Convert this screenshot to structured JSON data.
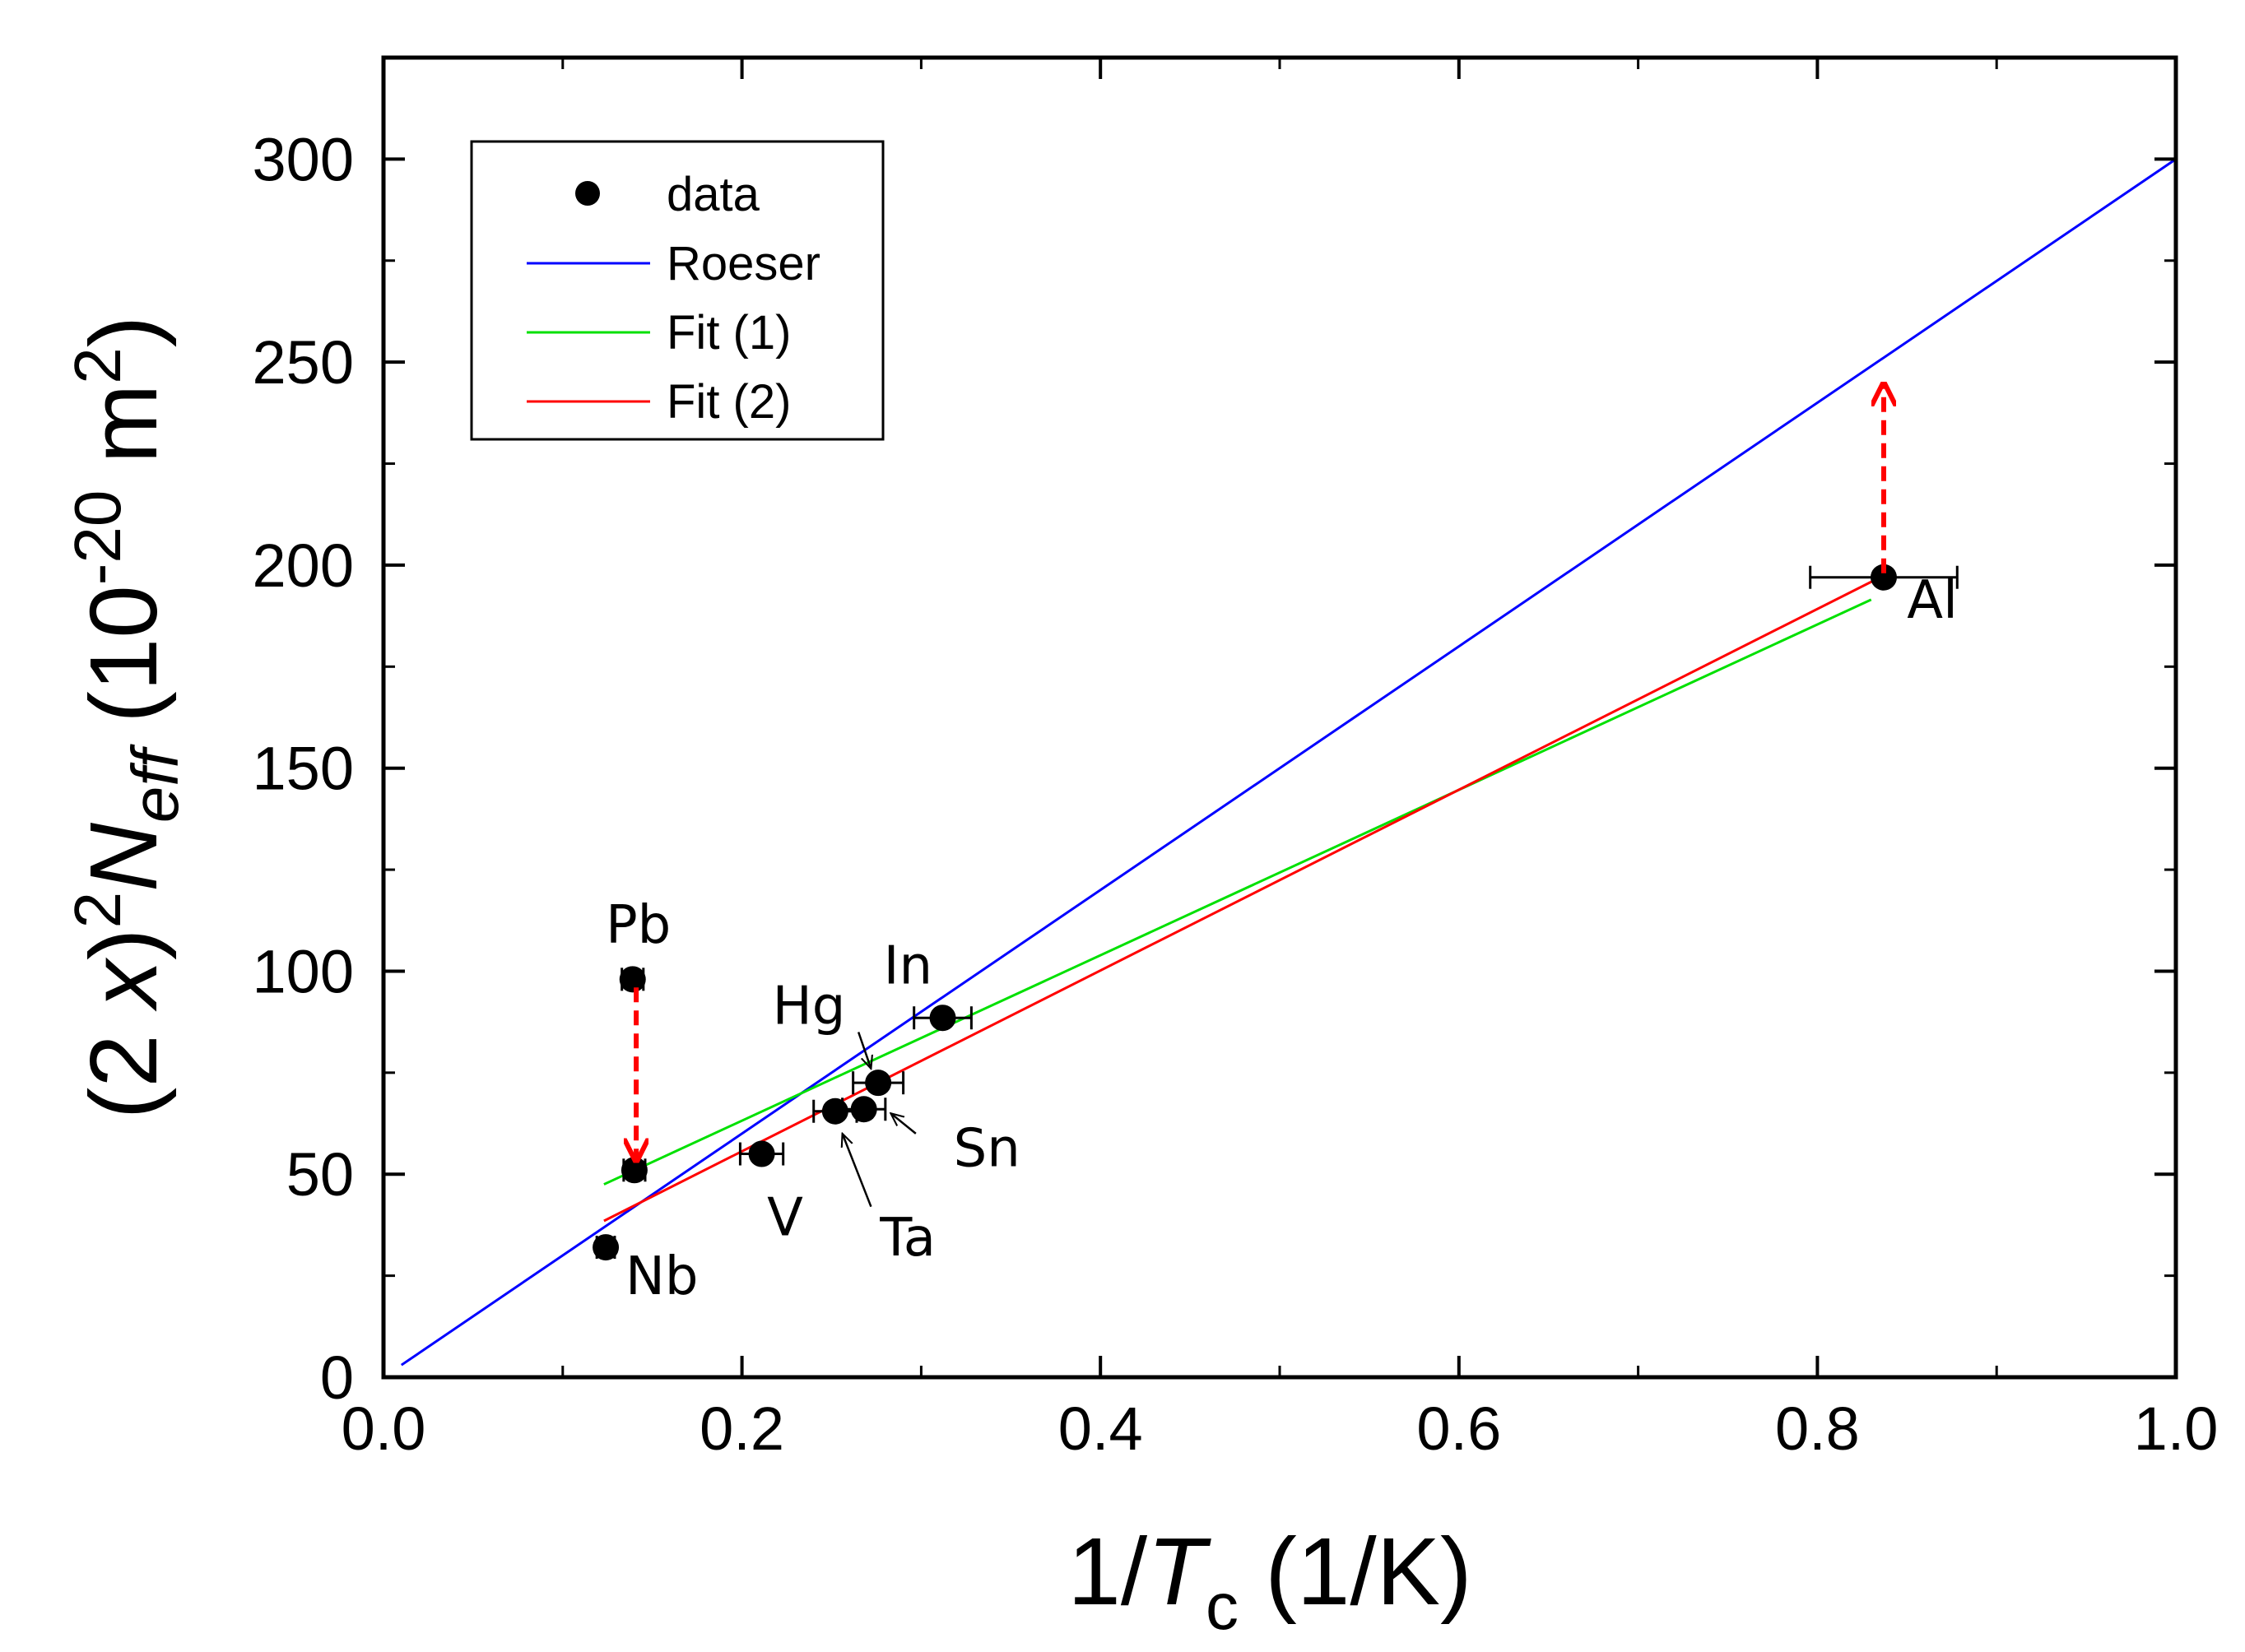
{
  "chart_data": {
    "type": "scatter",
    "title": "",
    "xlabel": {
      "prefix": "1/",
      "italic": "T",
      "sub": "c",
      "suffix": " (1/K)"
    },
    "ylabel": {
      "lead": "(2 ",
      "italic_x": "x",
      "paren": ")",
      "sup2": "2",
      "italic_N": "N",
      "sub_eff": "eff",
      "unit_open": " (10",
      "sup_exp": "-20",
      "unit_m": " m",
      "sup_m": "2",
      "close": ")"
    },
    "xlim": [
      0,
      1.0
    ],
    "ylim": [
      0,
      325
    ],
    "xticks": [
      0.0,
      0.2,
      0.4,
      0.6,
      0.8,
      1.0
    ],
    "xtick_labels": [
      "0.0",
      "0.2",
      "0.4",
      "0.6",
      "0.8",
      "1.0"
    ],
    "yticks": [
      0,
      50,
      100,
      150,
      200,
      250,
      300
    ],
    "ytick_labels": [
      "0",
      "50",
      "100",
      "150",
      "200",
      "250",
      "300"
    ],
    "legend": [
      {
        "label": "data",
        "kind": "marker",
        "color": "#000000"
      },
      {
        "label": "Roeser",
        "kind": "line",
        "color": "#0000ff"
      },
      {
        "label": "Fit (1)",
        "kind": "line",
        "color": "#00e000"
      },
      {
        "label": "Fit (2)",
        "kind": "line",
        "color": "#ff0000"
      }
    ],
    "points": [
      {
        "name": "Pb",
        "x": 0.139,
        "y": 98,
        "xerr": 0.006
      },
      {
        "name": "Pb*",
        "x": 0.14,
        "y": 51,
        "xerr": 0.006
      },
      {
        "name": "Nb",
        "x": 0.124,
        "y": 32,
        "xerr": 0.005
      },
      {
        "name": "V",
        "x": 0.211,
        "y": 55,
        "xerr": 0.012
      },
      {
        "name": "Ta",
        "x": 0.252,
        "y": 65.5,
        "xerr": 0.012
      },
      {
        "name": "Sn",
        "x": 0.268,
        "y": 66,
        "xerr": 0.012
      },
      {
        "name": "Hg",
        "x": 0.276,
        "y": 72.5,
        "xerr": 0.014
      },
      {
        "name": "In",
        "x": 0.312,
        "y": 88.5,
        "xerr": 0.016
      },
      {
        "name": "Al",
        "x": 0.837,
        "y": 197,
        "xerr": 0.041
      }
    ],
    "series": [
      {
        "name": "Roeser",
        "color": "#0000ff",
        "x": [
          0.01,
          1.0
        ],
        "y": [
          3,
          300
        ]
      },
      {
        "name": "Fit (1)",
        "color": "#00e000",
        "x": [
          0.123,
          0.83
        ],
        "y": [
          47.5,
          191.5
        ]
      },
      {
        "name": "Fit (2)",
        "color": "#ff0000",
        "x": [
          0.123,
          0.835
        ],
        "y": [
          38.5,
          197
        ]
      }
    ],
    "arrows": [
      {
        "from": [
          0.141,
          96
        ],
        "to": [
          0.141,
          54
        ],
        "color": "#ff0000",
        "style": "dashed"
      },
      {
        "from": [
          0.837,
          198
        ],
        "to": [
          0.837,
          244
        ],
        "color": "#ff0000",
        "style": "dashed"
      }
    ],
    "annotations": [
      {
        "text": "Pb",
        "x": 0.124,
        "y": 107
      },
      {
        "text": "Nb",
        "x": 0.135,
        "y": 20.5
      },
      {
        "text": "V",
        "x": 0.214,
        "y": 35
      },
      {
        "text": "Ta",
        "x": 0.277,
        "y": 30
      },
      {
        "text": "Sn",
        "x": 0.318,
        "y": 52
      },
      {
        "text": "Hg",
        "x": 0.217,
        "y": 87
      },
      {
        "text": "In",
        "x": 0.279,
        "y": 97
      },
      {
        "text": "Al",
        "x": 0.85,
        "y": 187
      }
    ],
    "pointer_arrows": [
      {
        "label": "Hg",
        "from": [
          0.265,
          85
        ],
        "to": [
          0.272,
          76
        ]
      },
      {
        "label": "Sn",
        "from": [
          0.297,
          60
        ],
        "to": [
          0.283,
          65
        ]
      },
      {
        "label": "Ta",
        "from": [
          0.272,
          42
        ],
        "to": [
          0.256,
          60
        ]
      }
    ]
  }
}
